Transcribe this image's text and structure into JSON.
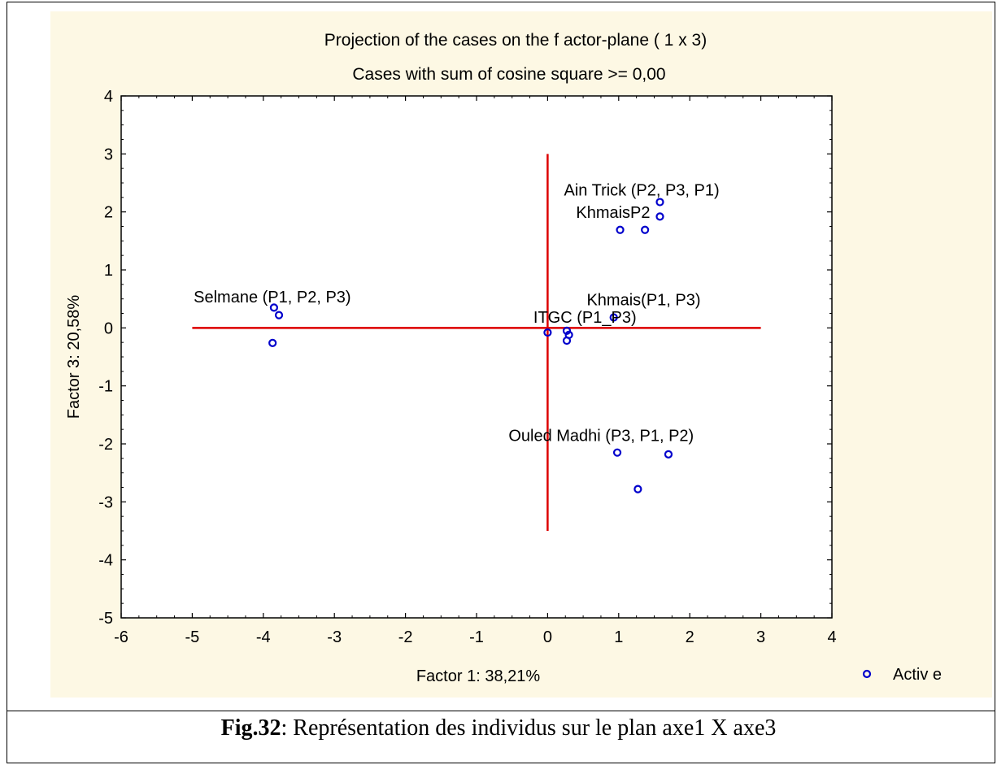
{
  "chart_data": {
    "type": "scatter",
    "title": "Projection of the cases on the f actor-plane (  1 x    3)",
    "subtitle": "Cases with sum of cosine square >=  0,00",
    "xlabel": "Factor 1: 38,21%",
    "ylabel": "Factor 3: 20,58%",
    "xlim": [
      -6,
      4
    ],
    "ylim": [
      -5,
      4
    ],
    "xticks": [
      "-6",
      "-5",
      "-4",
      "-3",
      "-2",
      "-1",
      "0",
      "1",
      "2",
      "3",
      "4"
    ],
    "yticks": [
      "4",
      "3",
      "2",
      "1",
      "0",
      "-1",
      "-2",
      "-3",
      "-4",
      "-5"
    ],
    "reference_lines": {
      "horizontal": {
        "y": 0,
        "x_from": -5,
        "x_to": 3
      },
      "vertical": {
        "x": 0,
        "y_from": -3.5,
        "y_to": 3
      }
    },
    "series": [
      {
        "name": "Activ e",
        "color": "#0000cc",
        "marker": "open-circle",
        "points": [
          {
            "x": -3.85,
            "y": 0.35
          },
          {
            "x": -3.78,
            "y": 0.22
          },
          {
            "x": -3.87,
            "y": -0.26
          },
          {
            "x": 0.0,
            "y": -0.08
          },
          {
            "x": 0.27,
            "y": -0.05
          },
          {
            "x": 0.3,
            "y": -0.12
          },
          {
            "x": 0.27,
            "y": -0.22
          },
          {
            "x": 0.93,
            "y": 0.18
          },
          {
            "x": 1.02,
            "y": 1.69
          },
          {
            "x": 1.37,
            "y": 1.69
          },
          {
            "x": 1.58,
            "y": 2.17
          },
          {
            "x": 1.58,
            "y": 1.92
          },
          {
            "x": 0.98,
            "y": -2.15
          },
          {
            "x": 1.7,
            "y": -2.18
          },
          {
            "x": 1.27,
            "y": -2.78
          }
        ]
      }
    ],
    "annotations": [
      {
        "text": "Selmane (P1, P2, P3)",
        "x": -4.98,
        "y": 0.44
      },
      {
        "text": "Ain Trick (P2, P3, P1)",
        "x": 0.23,
        "y": 2.28
      },
      {
        "text": "KhmaisP2",
        "x": 0.4,
        "y": 1.9
      },
      {
        "text": "Khmais(P1, P3)",
        "x": 0.55,
        "y": 0.39
      },
      {
        "text": "ITGC (P1_P3)",
        "x": -0.2,
        "y": 0.09
      },
      {
        "text": "Ouled Madhi (P3, P1, P2)",
        "x": -0.55,
        "y": -1.95
      }
    ],
    "legend": {
      "label": "Activ e",
      "placement": "bottom-right"
    }
  },
  "caption": {
    "label": "Fig.32",
    "text": ": Représentation  des individus  sur le plan axe1  X axe3"
  }
}
